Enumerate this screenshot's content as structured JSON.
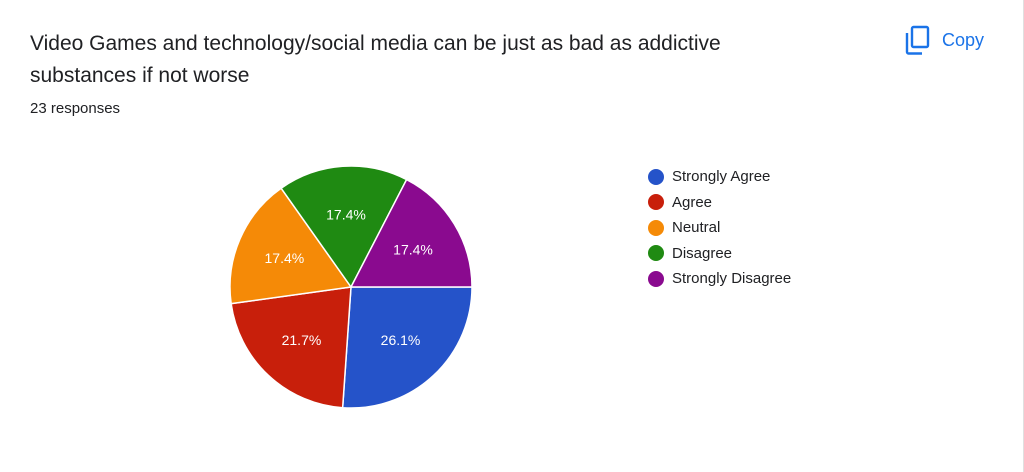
{
  "header": {
    "title": "Video Games and technology/social media can be just as bad as addictive substances if not worse",
    "responses": "23 responses",
    "copy_label": "Copy",
    "copy_icon": "copy-icon"
  },
  "chart_data": {
    "type": "pie",
    "title": "",
    "legend_position": "right",
    "slices": [
      {
        "label": "Strongly Agree",
        "value": 26.1,
        "display": "26.1%",
        "color": "#2553c9"
      },
      {
        "label": "Agree",
        "value": 21.7,
        "display": "21.7%",
        "color": "#c81f0b"
      },
      {
        "label": "Neutral",
        "value": 17.4,
        "display": "17.4%",
        "color": "#f58a07"
      },
      {
        "label": "Disagree",
        "value": 17.4,
        "display": "17.4%",
        "color": "#1f8a12"
      },
      {
        "label": "Strongly Disagree",
        "value": 17.4,
        "display": "17.4%",
        "color": "#8a0a8f"
      }
    ]
  },
  "legend": {
    "items": [
      {
        "label": "Strongly Agree",
        "color": "#2553c9"
      },
      {
        "label": "Agree",
        "color": "#c81f0b"
      },
      {
        "label": "Neutral",
        "color": "#f58a07"
      },
      {
        "label": "Disagree",
        "color": "#1f8a12"
      },
      {
        "label": "Strongly Disagree",
        "color": "#8a0a8f"
      }
    ]
  }
}
